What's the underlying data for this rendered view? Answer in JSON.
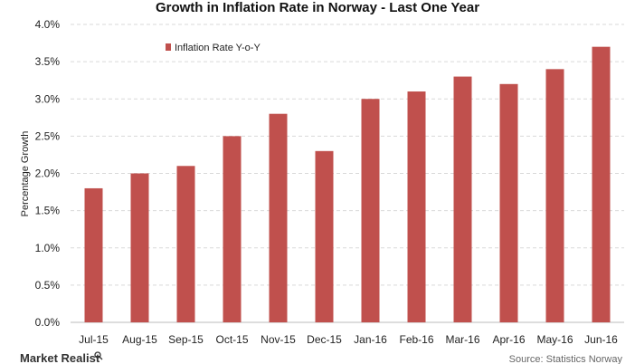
{
  "chart_data": {
    "type": "bar",
    "title": "Growth in Inflation Rate in Norway - Last One Year",
    "xlabel": "",
    "ylabel": "Percentage Growth",
    "categories": [
      "Jul-15",
      "Aug-15",
      "Sep-15",
      "Oct-15",
      "Nov-15",
      "Dec-15",
      "Jan-16",
      "Feb-16",
      "Mar-16",
      "Apr-16",
      "May-16",
      "Jun-16"
    ],
    "series": [
      {
        "name": "Inflation Rate Y-o-Y",
        "color": "#c0504d",
        "values": [
          1.8,
          2.0,
          2.1,
          2.5,
          2.8,
          2.3,
          3.0,
          3.1,
          3.3,
          3.2,
          3.4,
          3.7
        ]
      }
    ],
    "ylim": [
      0,
      4.0
    ],
    "yticks": [
      "0.0%",
      "0.5%",
      "1.0%",
      "1.5%",
      "2.0%",
      "2.5%",
      "3.0%",
      "3.5%",
      "4.0%"
    ],
    "grid": true,
    "legend": "top-left"
  },
  "footer": {
    "brand": "Market Realist",
    "source": "Source: Statistics Norway"
  }
}
